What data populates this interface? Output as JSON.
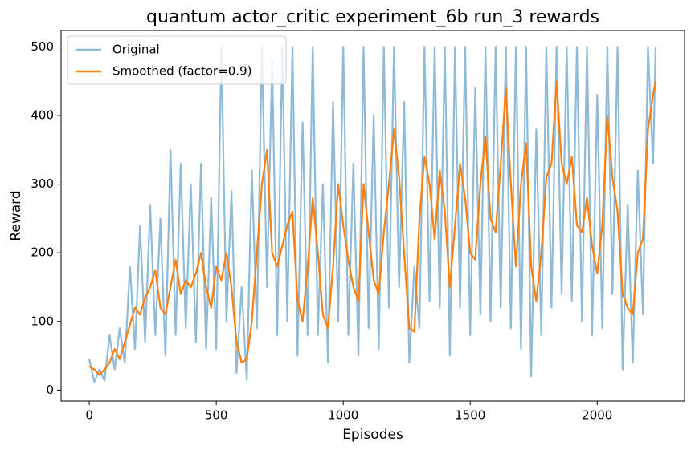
{
  "chart_data": {
    "type": "line",
    "title": "quantum actor_critic experiment_6b run_3 rewards",
    "x_label": "Episodes",
    "y_label": "Reward",
    "legend": "upper left",
    "x": [
      0,
      20,
      40,
      60,
      80,
      100,
      120,
      140,
      160,
      180,
      200,
      220,
      240,
      260,
      280,
      300,
      320,
      340,
      360,
      380,
      400,
      420,
      440,
      460,
      480,
      500,
      520,
      540,
      560,
      580,
      600,
      620,
      640,
      660,
      680,
      700,
      720,
      740,
      760,
      780,
      800,
      820,
      840,
      860,
      880,
      900,
      920,
      940,
      960,
      980,
      1000,
      1020,
      1040,
      1060,
      1080,
      1100,
      1120,
      1140,
      1160,
      1180,
      1200,
      1220,
      1240,
      1260,
      1280,
      1300,
      1320,
      1340,
      1360,
      1380,
      1400,
      1420,
      1440,
      1460,
      1480,
      1500,
      1520,
      1540,
      1560,
      1580,
      1600,
      1620,
      1640,
      1660,
      1680,
      1700,
      1720,
      1740,
      1760,
      1780,
      1800,
      1820,
      1840,
      1860,
      1880,
      1900,
      1920,
      1940,
      1960,
      1980,
      2000,
      2020,
      2040,
      2060,
      2080,
      2100,
      2120,
      2140,
      2160,
      2180,
      2200,
      2220,
      2230
    ],
    "series": [
      {
        "name": "Original",
        "color": "#8fbbd9",
        "values": [
          45,
          12,
          30,
          14,
          80,
          30,
          90,
          40,
          180,
          60,
          240,
          70,
          270,
          80,
          250,
          50,
          350,
          80,
          330,
          90,
          300,
          70,
          330,
          60,
          280,
          60,
          500,
          100,
          290,
          25,
          150,
          15,
          320,
          90,
          500,
          150,
          480,
          80,
          500,
          100,
          500,
          50,
          390,
          80,
          500,
          80,
          300,
          40,
          420,
          100,
          500,
          80,
          330,
          50,
          500,
          90,
          400,
          60,
          500,
          120,
          500,
          150,
          420,
          40,
          180,
          90,
          500,
          130,
          500,
          120,
          500,
          50,
          500,
          120,
          500,
          80,
          440,
          110,
          500,
          100,
          500,
          120,
          500,
          90,
          500,
          60,
          500,
          20,
          380,
          80,
          500,
          120,
          500,
          140,
          500,
          130,
          500,
          100,
          500,
          80,
          430,
          90,
          500,
          140,
          500,
          30,
          270,
          40,
          320,
          110,
          500,
          330,
          500
        ]
      },
      {
        "name": "Smoothed (factor=0.9)",
        "color": "#ff7f0e",
        "values": [
          35,
          30,
          22,
          30,
          40,
          60,
          45,
          70,
          95,
          120,
          110,
          135,
          150,
          175,
          120,
          110,
          150,
          190,
          140,
          160,
          150,
          170,
          200,
          150,
          120,
          180,
          160,
          200,
          150,
          70,
          40,
          45,
          100,
          200,
          300,
          350,
          200,
          180,
          210,
          240,
          260,
          130,
          100,
          180,
          280,
          200,
          110,
          90,
          180,
          300,
          240,
          190,
          150,
          130,
          300,
          230,
          160,
          140,
          230,
          300,
          380,
          310,
          200,
          90,
          85,
          250,
          340,
          300,
          220,
          320,
          260,
          150,
          240,
          330,
          280,
          200,
          190,
          300,
          370,
          250,
          230,
          330,
          440,
          300,
          180,
          300,
          360,
          180,
          130,
          200,
          310,
          330,
          450,
          330,
          300,
          340,
          240,
          230,
          280,
          210,
          170,
          240,
          400,
          310,
          260,
          140,
          120,
          110,
          200,
          220,
          380,
          430,
          450
        ]
      }
    ],
    "xlim": [
      -111,
      2344
    ],
    "ylim": [
      -16,
      524
    ],
    "xticks": [
      0,
      500,
      1000,
      1500,
      2000
    ],
    "yticks": [
      0,
      100,
      200,
      300,
      400,
      500
    ]
  }
}
